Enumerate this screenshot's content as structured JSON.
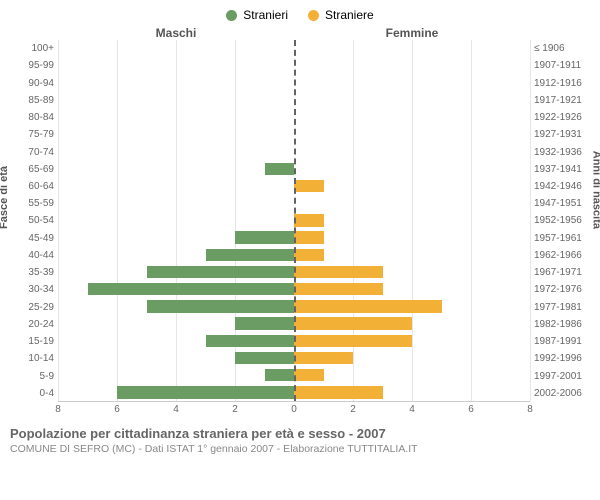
{
  "legend": {
    "male": {
      "label": "Stranieri",
      "color": "#6b9c63"
    },
    "female": {
      "label": "Straniere",
      "color": "#f2b136"
    }
  },
  "headers": {
    "male": "Maschi",
    "female": "Femmine"
  },
  "axis_titles": {
    "left": "Fasce di età",
    "right": "Anni di nascita"
  },
  "chart": {
    "type": "population-pyramid",
    "xmax": 8,
    "xtick_step": 2,
    "xticks": [
      8,
      6,
      4,
      2,
      0,
      2,
      4,
      6,
      8
    ],
    "grid_color": "#e6e6e6",
    "center_line_color": "#636363",
    "background": "#ffffff",
    "bar_fill_male": "#6b9c63",
    "bar_fill_female": "#f2b136",
    "rows": [
      {
        "age": "100+",
        "birth": "≤ 1906",
        "m": 0,
        "f": 0
      },
      {
        "age": "95-99",
        "birth": "1907-1911",
        "m": 0,
        "f": 0
      },
      {
        "age": "90-94",
        "birth": "1912-1916",
        "m": 0,
        "f": 0
      },
      {
        "age": "85-89",
        "birth": "1917-1921",
        "m": 0,
        "f": 0
      },
      {
        "age": "80-84",
        "birth": "1922-1926",
        "m": 0,
        "f": 0
      },
      {
        "age": "75-79",
        "birth": "1927-1931",
        "m": 0,
        "f": 0
      },
      {
        "age": "70-74",
        "birth": "1932-1936",
        "m": 0,
        "f": 0
      },
      {
        "age": "65-69",
        "birth": "1937-1941",
        "m": 1,
        "f": 0
      },
      {
        "age": "60-64",
        "birth": "1942-1946",
        "m": 0,
        "f": 1
      },
      {
        "age": "55-59",
        "birth": "1947-1951",
        "m": 0,
        "f": 0
      },
      {
        "age": "50-54",
        "birth": "1952-1956",
        "m": 0,
        "f": 1
      },
      {
        "age": "45-49",
        "birth": "1957-1961",
        "m": 2,
        "f": 1
      },
      {
        "age": "40-44",
        "birth": "1962-1966",
        "m": 3,
        "f": 1
      },
      {
        "age": "35-39",
        "birth": "1967-1971",
        "m": 5,
        "f": 3
      },
      {
        "age": "30-34",
        "birth": "1972-1976",
        "m": 7,
        "f": 3
      },
      {
        "age": "25-29",
        "birth": "1977-1981",
        "m": 5,
        "f": 5
      },
      {
        "age": "20-24",
        "birth": "1982-1986",
        "m": 2,
        "f": 4
      },
      {
        "age": "15-19",
        "birth": "1987-1991",
        "m": 3,
        "f": 4
      },
      {
        "age": "10-14",
        "birth": "1992-1996",
        "m": 2,
        "f": 2
      },
      {
        "age": "5-9",
        "birth": "1997-2001",
        "m": 1,
        "f": 1
      },
      {
        "age": "0-4",
        "birth": "2002-2006",
        "m": 6,
        "f": 3
      }
    ]
  },
  "footer": {
    "title": "Popolazione per cittadinanza straniera per età e sesso - 2007",
    "subtitle": "COMUNE DI SEFRO (MC) - Dati ISTAT 1° gennaio 2007 - Elaborazione TUTTITALIA.IT"
  }
}
